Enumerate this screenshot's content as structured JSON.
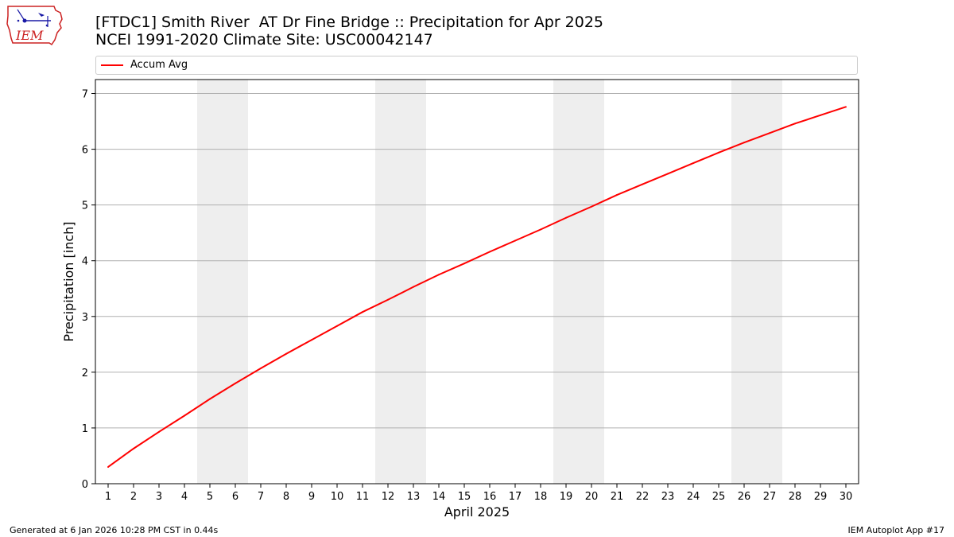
{
  "header": {
    "title_line1": "[FTDC1] Smith River  AT Dr Fine Bridge :: Precipitation for Apr 2025",
    "title_line2": "NCEI 1991-2020 Climate Site: USC00042147",
    "logo_text": "IEM",
    "logo_icon": "iowa-state-outline-weather-icon"
  },
  "footer": {
    "left": "Generated at 6 Jan 2026 10:28 PM CST in 0.44s",
    "right": "IEM Autoplot App #17"
  },
  "colors": {
    "series_line": "#ff0000",
    "weekend_band": "#eeeeee",
    "grid": "#b0b0b0",
    "logo_red": "#cc2222",
    "logo_blue": "#1a1aa6"
  },
  "chart_data": {
    "type": "line",
    "title": "[FTDC1] Smith River  AT Dr Fine Bridge :: Precipitation for Apr 2025",
    "subtitle": "NCEI 1991-2020 Climate Site: USC00042147",
    "xlabel": "April 2025",
    "ylabel": "Precipitation [inch]",
    "x": [
      1,
      2,
      3,
      4,
      5,
      6,
      7,
      8,
      9,
      10,
      11,
      12,
      13,
      14,
      15,
      16,
      17,
      18,
      19,
      20,
      21,
      22,
      23,
      24,
      25,
      26,
      27,
      28,
      29,
      30
    ],
    "x_tick_labels": [
      "1",
      "2",
      "3",
      "4",
      "5",
      "6",
      "7",
      "8",
      "9",
      "10",
      "11",
      "12",
      "13",
      "14",
      "15",
      "16",
      "17",
      "18",
      "19",
      "20",
      "21",
      "22",
      "23",
      "24",
      "25",
      "26",
      "27",
      "28",
      "29",
      "30"
    ],
    "xlim": [
      0.5,
      30.5
    ],
    "ylim": [
      0,
      7.25
    ],
    "y_ticks": [
      0,
      1,
      2,
      3,
      4,
      5,
      6,
      7
    ],
    "y_tick_labels": [
      "0",
      "1",
      "2",
      "3",
      "4",
      "5",
      "6",
      "7"
    ],
    "grid": "horizontal",
    "legend": "top",
    "weekend_bands": [
      [
        4.5,
        6.5
      ],
      [
        11.5,
        13.5
      ],
      [
        18.5,
        20.5
      ],
      [
        25.5,
        27.5
      ]
    ],
    "series": [
      {
        "name": "Accum Avg",
        "values": [
          0.3,
          0.63,
          0.93,
          1.22,
          1.52,
          1.8,
          2.07,
          2.33,
          2.58,
          2.83,
          3.08,
          3.3,
          3.53,
          3.75,
          3.95,
          4.16,
          4.36,
          4.56,
          4.77,
          4.97,
          5.18,
          5.37,
          5.56,
          5.75,
          5.94,
          6.12,
          6.29,
          6.46,
          6.61,
          6.76
        ]
      }
    ]
  }
}
